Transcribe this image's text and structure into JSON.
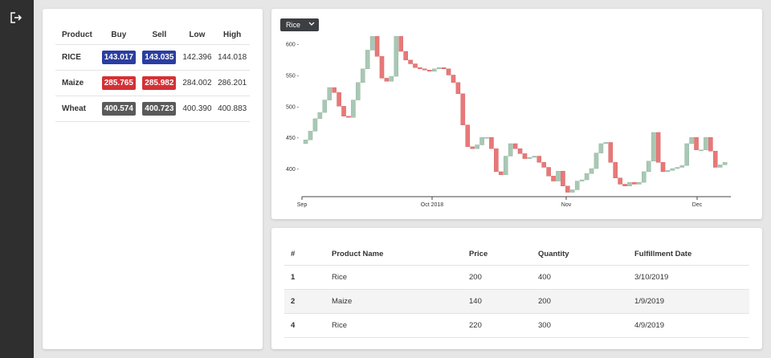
{
  "sidebar": {
    "logout_icon": "logout-icon"
  },
  "prices": {
    "headers": [
      "Product",
      "Buy",
      "Sell",
      "Low",
      "High"
    ],
    "rows": [
      {
        "product": "RICE",
        "buy": "143.017",
        "sell": "143.035",
        "low": "142.396",
        "high": "144.018",
        "buy_color": "#2b3ea0",
        "sell_color": "#2b3ea0"
      },
      {
        "product": "Maize",
        "buy": "285.765",
        "sell": "285.982",
        "low": "284.002",
        "high": "286.201",
        "buy_color": "#d33236",
        "sell_color": "#d33236"
      },
      {
        "product": "Wheat",
        "buy": "400.574",
        "sell": "400.723",
        "low": "400.390",
        "high": "400.883",
        "buy_color": "#5a5a5a",
        "sell_color": "#5a5a5a"
      }
    ]
  },
  "chart": {
    "selector": {
      "value": "Rice",
      "icon": "chevron-down-icon"
    },
    "chart_data": {
      "type": "candlestick",
      "ylim": [
        355,
        615
      ],
      "y_ticks": [
        "400",
        "450",
        "500",
        "550",
        "600"
      ],
      "x_ticks": [
        "Sep",
        "Oct 2018",
        "Nov",
        "Dec"
      ],
      "up_color": "#a8c8b4",
      "down_color": "#e87878",
      "candles": [
        [
          440,
          446
        ],
        [
          446,
          460
        ],
        [
          460,
          480
        ],
        [
          480,
          490
        ],
        [
          490,
          510
        ],
        [
          510,
          530
        ],
        [
          530,
          522
        ],
        [
          522,
          500
        ],
        [
          500,
          484
        ],
        [
          484,
          482
        ],
        [
          482,
          510
        ],
        [
          510,
          538
        ],
        [
          538,
          560
        ],
        [
          560,
          590
        ],
        [
          590,
          612
        ],
        [
          612,
          580
        ],
        [
          580,
          545
        ],
        [
          545,
          540
        ],
        [
          540,
          548
        ],
        [
          548,
          612
        ],
        [
          612,
          588
        ],
        [
          588,
          574
        ],
        [
          574,
          568
        ],
        [
          568,
          562
        ],
        [
          562,
          560
        ],
        [
          560,
          558
        ],
        [
          558,
          556
        ],
        [
          556,
          560
        ],
        [
          560,
          562
        ],
        [
          562,
          560
        ],
        [
          560,
          550
        ],
        [
          550,
          538
        ],
        [
          538,
          520
        ],
        [
          520,
          470
        ],
        [
          470,
          435
        ],
        [
          435,
          432
        ],
        [
          432,
          438
        ],
        [
          438,
          450
        ],
        [
          450,
          450
        ],
        [
          450,
          432
        ],
        [
          432,
          395
        ],
        [
          395,
          390
        ],
        [
          390,
          420
        ],
        [
          420,
          440
        ],
        [
          440,
          432
        ],
        [
          432,
          424
        ],
        [
          424,
          416
        ],
        [
          416,
          418
        ],
        [
          418,
          420
        ],
        [
          420,
          410
        ],
        [
          410,
          402
        ],
        [
          402,
          388
        ],
        [
          388,
          380
        ],
        [
          380,
          396
        ],
        [
          396,
          372
        ],
        [
          372,
          362
        ],
        [
          362,
          366
        ],
        [
          366,
          380
        ],
        [
          380,
          382
        ],
        [
          382,
          392
        ],
        [
          392,
          400
        ],
        [
          400,
          425
        ],
        [
          425,
          440
        ],
        [
          440,
          442
        ],
        [
          442,
          410
        ],
        [
          410,
          385
        ],
        [
          385,
          375
        ],
        [
          375,
          372
        ],
        [
          372,
          378
        ],
        [
          378,
          375
        ],
        [
          375,
          378
        ],
        [
          378,
          395
        ],
        [
          395,
          412
        ],
        [
          412,
          458
        ],
        [
          458,
          410
        ],
        [
          410,
          395
        ],
        [
          395,
          397
        ],
        [
          397,
          400
        ],
        [
          400,
          402
        ],
        [
          402,
          405
        ],
        [
          405,
          440
        ],
        [
          440,
          450
        ],
        [
          450,
          430
        ],
        [
          430,
          430
        ],
        [
          430,
          450
        ],
        [
          450,
          428
        ],
        [
          428,
          402
        ],
        [
          402,
          406
        ],
        [
          406,
          410
        ]
      ]
    }
  },
  "orders": {
    "headers": [
      "#",
      "Product Name",
      "Price",
      "Quantity",
      "Fulfillment Date"
    ],
    "rows": [
      {
        "id": "1",
        "product": "Rice",
        "price": "200",
        "quantity": "400",
        "date": "3/10/2019"
      },
      {
        "id": "2",
        "product": "Maize",
        "price": "140",
        "quantity": "200",
        "date": "1/9/2019"
      },
      {
        "id": "4",
        "product": "Rice",
        "price": "220",
        "quantity": "300",
        "date": "4/9/2019"
      }
    ]
  }
}
